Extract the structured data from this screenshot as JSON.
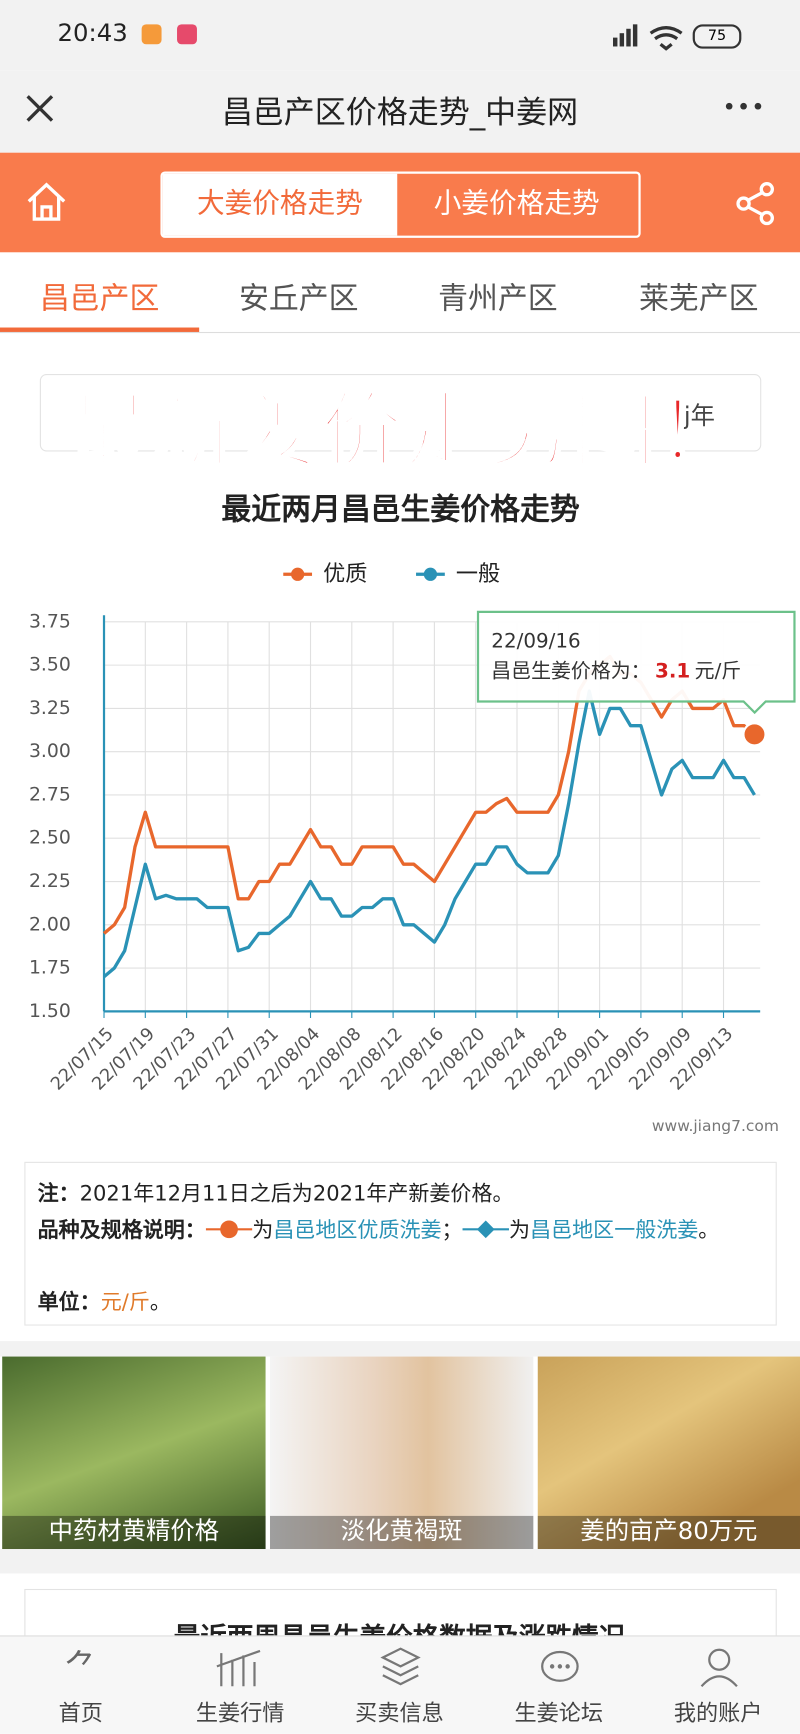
{
  "status_bar": {
    "time": "20:43",
    "battery": "75"
  },
  "nav": {
    "title": "昌邑产区价格走势_中姜网"
  },
  "toggle": {
    "active": "大姜价格走势",
    "inactive": "小姜价格走势"
  },
  "region_tabs": [
    "昌邑产区",
    "安丘产区",
    "青州产区",
    "莱芜产区"
  ],
  "banner": {
    "overlay": "最新姜价走势图！",
    "selector_fragment": "j年"
  },
  "chart_data": {
    "type": "line",
    "title": "最近两月昌邑生姜价格走势",
    "watermark": "www.jiang7.com",
    "categories": [
      "22/07/15",
      null,
      null,
      null,
      "22/07/19",
      null,
      null,
      null,
      "22/07/23",
      null,
      null,
      null,
      "22/07/27",
      null,
      null,
      null,
      "22/07/31",
      null,
      null,
      null,
      "22/08/04",
      null,
      null,
      null,
      "22/08/08",
      null,
      null,
      null,
      "22/08/12",
      null,
      null,
      null,
      "22/08/16",
      null,
      null,
      null,
      "22/08/20",
      null,
      null,
      null,
      "22/08/24",
      null,
      null,
      null,
      "22/08/28",
      null,
      null,
      null,
      "22/09/01",
      null,
      null,
      null,
      "22/09/05",
      null,
      null,
      null,
      "22/09/09",
      null,
      null,
      null,
      "22/09/13",
      null,
      null,
      null
    ],
    "series": [
      {
        "name": "优质",
        "color": "#e8672c",
        "values": [
          1.95,
          2.0,
          2.1,
          2.45,
          2.65,
          2.45,
          2.45,
          2.45,
          2.45,
          2.45,
          2.45,
          2.45,
          2.45,
          2.15,
          2.15,
          2.25,
          2.25,
          2.35,
          2.35,
          2.45,
          2.55,
          2.45,
          2.45,
          2.35,
          2.35,
          2.45,
          2.45,
          2.45,
          2.45,
          2.35,
          2.35,
          2.3,
          2.25,
          2.35,
          2.45,
          2.55,
          2.65,
          2.65,
          2.7,
          2.73,
          2.65,
          2.65,
          2.65,
          2.65,
          2.75,
          3.0,
          3.35,
          3.45,
          3.5,
          3.55,
          3.45,
          3.45,
          3.4,
          3.3,
          3.2,
          3.3,
          3.35,
          3.25,
          3.25,
          3.25,
          3.3,
          3.15,
          3.15,
          3.1
        ]
      },
      {
        "name": "一般",
        "color": "#2a92b6",
        "values": [
          1.7,
          1.75,
          1.85,
          2.1,
          2.35,
          2.15,
          2.17,
          2.15,
          2.15,
          2.15,
          2.1,
          2.1,
          2.1,
          1.85,
          1.87,
          1.95,
          1.95,
          2.0,
          2.05,
          2.15,
          2.25,
          2.15,
          2.15,
          2.05,
          2.05,
          2.1,
          2.1,
          2.15,
          2.15,
          2.0,
          2.0,
          1.95,
          1.9,
          2.0,
          2.15,
          2.25,
          2.35,
          2.35,
          2.45,
          2.45,
          2.35,
          2.3,
          2.3,
          2.3,
          2.4,
          2.7,
          3.05,
          3.35,
          3.1,
          3.25,
          3.25,
          3.15,
          3.15,
          2.95,
          2.75,
          2.9,
          2.95,
          2.85,
          2.85,
          2.85,
          2.95,
          2.85,
          2.85,
          2.75
        ]
      }
    ],
    "ylim": [
      1.5,
      3.75
    ],
    "yticks": [
      {
        "value": 1.5,
        "label": "1.50"
      },
      {
        "value": 1.75,
        "label": "1.75"
      },
      {
        "value": 2,
        "label": "2.00"
      },
      {
        "value": 2.25,
        "label": "2.25"
      },
      {
        "value": 2.5,
        "label": "2.50"
      },
      {
        "value": 2.75,
        "label": "2.75"
      },
      {
        "value": 3,
        "label": "3.00"
      },
      {
        "value": 3.25,
        "label": "3.25"
      },
      {
        "value": 3.5,
        "label": "3.50"
      },
      {
        "value": 3.75,
        "label": "3.75"
      }
    ],
    "grid": true,
    "tooltip": {
      "date": "22/09/16",
      "prefix": "昌邑生姜价格为：",
      "value": 3.1,
      "unit": "元/斤"
    }
  },
  "notes": {
    "label": "注：",
    "text": "2021年12月11日之后为2021年产新姜价格。",
    "variety_label": "品种及规格说明：",
    "quality_prefix": "为",
    "quality_text": "昌邑地区优质洗姜",
    "separator": "；",
    "general_prefix": "为",
    "general_text": "昌邑地区一般洗姜",
    "end": "。",
    "unit_label": "单位：",
    "unit": "元/斤",
    "unit_end": "。"
  },
  "tiles": [
    "中药材黄精价格",
    "淡化黄褐斑",
    "姜的亩产80万元"
  ],
  "next_card": {
    "title": "最近两周昌邑生姜价格数据及涨跌情况"
  },
  "footer": [
    "首页",
    "生姜行情",
    "买卖信息",
    "生姜论坛",
    "我的账户"
  ]
}
